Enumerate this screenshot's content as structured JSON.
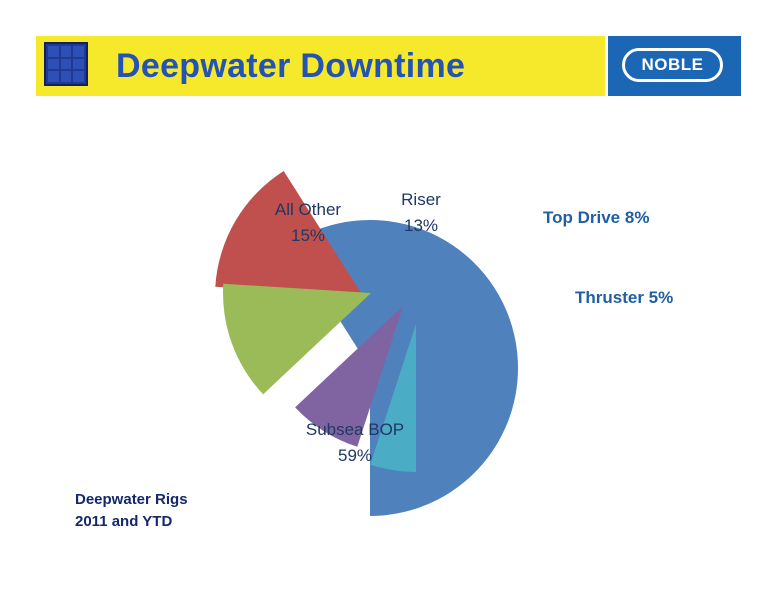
{
  "header": {
    "title": "Deepwater Downtime",
    "logo_text": "NOBLE"
  },
  "caption": {
    "line1": "Deepwater Rigs",
    "line2": "2011 and YTD"
  },
  "colors": {
    "title_bar": "#f6e82b",
    "title_text": "#2453b6",
    "logo_bg": "#1c66b6"
  },
  "chart_data": {
    "type": "pie",
    "title": "",
    "exploded": true,
    "slices": [
      {
        "label": "Subsea BOP",
        "value": 59,
        "display": "59%",
        "color": "#4f81bd",
        "label_color": "#1f3864"
      },
      {
        "label": "All Other",
        "value": 15,
        "display": "15%",
        "color": "#c0504d",
        "label_color": "#1f3864"
      },
      {
        "label": "Riser",
        "value": 13,
        "display": "13%",
        "color": "#9bbb59",
        "label_color": "#1f3864"
      },
      {
        "label": "Top Drive",
        "value": 8,
        "display": "8%",
        "color": "#8064a2",
        "label_color": "#1f5fa8"
      },
      {
        "label": "Thruster",
        "value": 5,
        "display": "5%",
        "color": "#4bacc6",
        "label_color": "#1f5fa8"
      }
    ]
  }
}
